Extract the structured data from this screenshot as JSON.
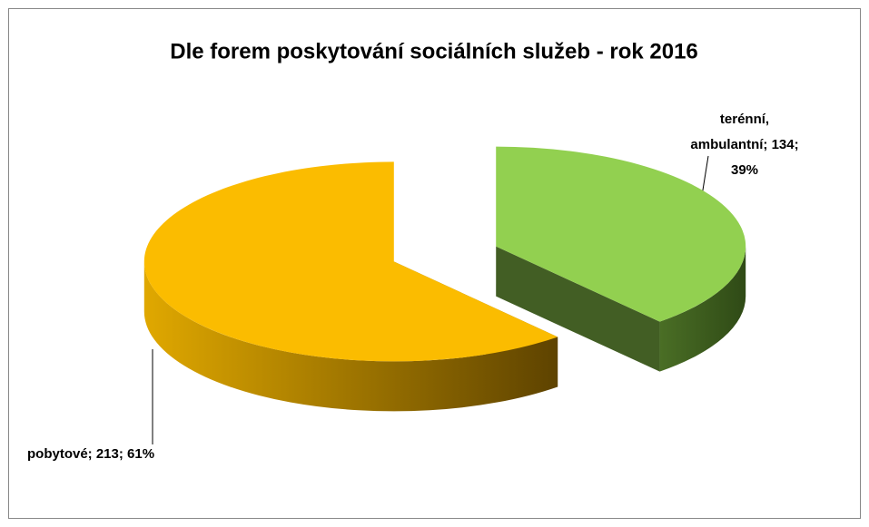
{
  "chart_data": {
    "type": "pie3d",
    "title": "Dle forem poskytování sociálních služeb - rok 2016",
    "categories": [
      "terénní, ambulantní",
      "pobytové"
    ],
    "values": [
      134,
      213
    ],
    "value_labels": [
      [
        "terénní,",
        "ambulantní; 134;",
        "39%"
      ],
      [
        "pobytové; 213; 61%"
      ]
    ],
    "colors": [
      "#92d050",
      "#fbbc00"
    ]
  }
}
